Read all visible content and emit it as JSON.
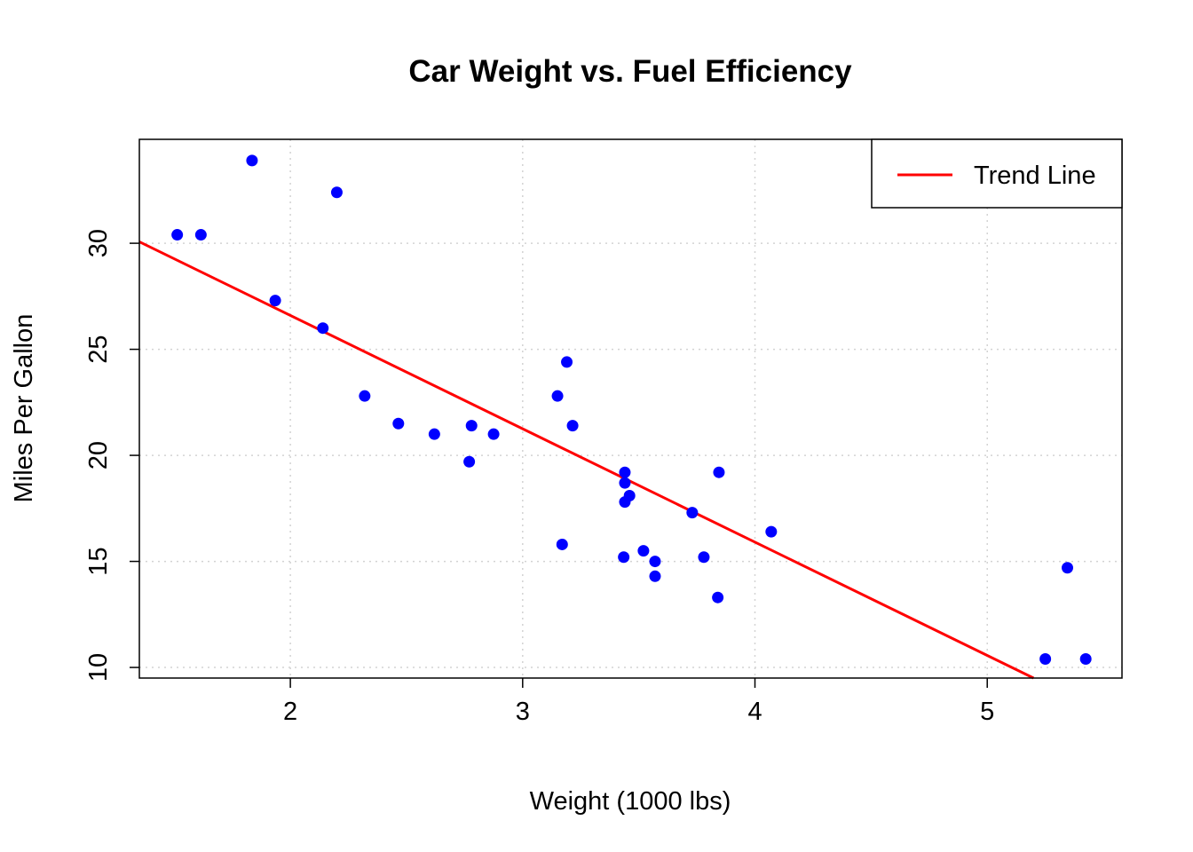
{
  "chart_data": {
    "type": "scatter",
    "title": "Car Weight vs. Fuel Efficiency",
    "xlabel": "Weight (1000 lbs)",
    "ylabel": "Miles Per Gallon",
    "xlim": [
      1.35,
      5.58
    ],
    "ylim": [
      9.5,
      34.9
    ],
    "x_ticks": [
      2,
      3,
      4,
      5
    ],
    "y_ticks": [
      10,
      15,
      20,
      25,
      30
    ],
    "grid": true,
    "legend": {
      "position": "top-right",
      "entries": [
        {
          "label": "Trend Line",
          "color": "#ff0000"
        }
      ]
    },
    "series": [
      {
        "color": "#0000ff",
        "points": [
          [
            2.62,
            21.0
          ],
          [
            2.875,
            21.0
          ],
          [
            2.32,
            22.8
          ],
          [
            3.215,
            21.4
          ],
          [
            3.44,
            18.7
          ],
          [
            3.46,
            18.1
          ],
          [
            3.57,
            14.3
          ],
          [
            3.19,
            24.4
          ],
          [
            3.15,
            22.8
          ],
          [
            3.44,
            19.2
          ],
          [
            3.44,
            17.8
          ],
          [
            4.07,
            16.4
          ],
          [
            3.73,
            17.3
          ],
          [
            3.78,
            15.2
          ],
          [
            5.25,
            10.4
          ],
          [
            5.424,
            10.4
          ],
          [
            5.345,
            14.7
          ],
          [
            2.2,
            32.4
          ],
          [
            1.615,
            30.4
          ],
          [
            1.835,
            33.9
          ],
          [
            2.465,
            21.5
          ],
          [
            3.52,
            15.5
          ],
          [
            3.435,
            15.2
          ],
          [
            3.84,
            13.3
          ],
          [
            3.845,
            19.2
          ],
          [
            1.935,
            27.3
          ],
          [
            2.14,
            26.0
          ],
          [
            1.513,
            30.4
          ],
          [
            3.17,
            15.8
          ],
          [
            2.77,
            19.7
          ],
          [
            3.57,
            15.0
          ],
          [
            2.78,
            21.4
          ]
        ]
      }
    ],
    "trend_line": {
      "color": "#ff0000",
      "intercept": 37.285,
      "slope": -5.344
    }
  }
}
